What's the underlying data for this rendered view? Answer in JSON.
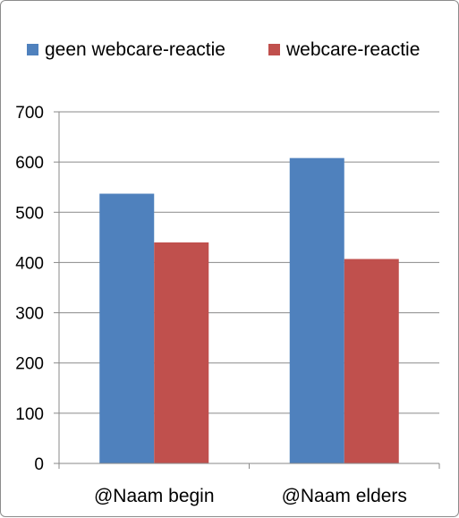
{
  "chart_data": {
    "type": "bar",
    "categories": [
      "@Naam begin",
      "@Naam elders"
    ],
    "series": [
      {
        "name": "geen webcare-reactie",
        "color": "#4F81BD",
        "values": [
          537,
          608
        ]
      },
      {
        "name": "webcare-reactie",
        "color": "#C0504D",
        "values": [
          440,
          407
        ]
      }
    ],
    "ylim": [
      0,
      700
    ],
    "yticks": [
      0,
      100,
      200,
      300,
      400,
      500,
      600,
      700
    ],
    "grid": true,
    "legend_position": "top",
    "title": "",
    "xlabel": "",
    "ylabel": ""
  }
}
